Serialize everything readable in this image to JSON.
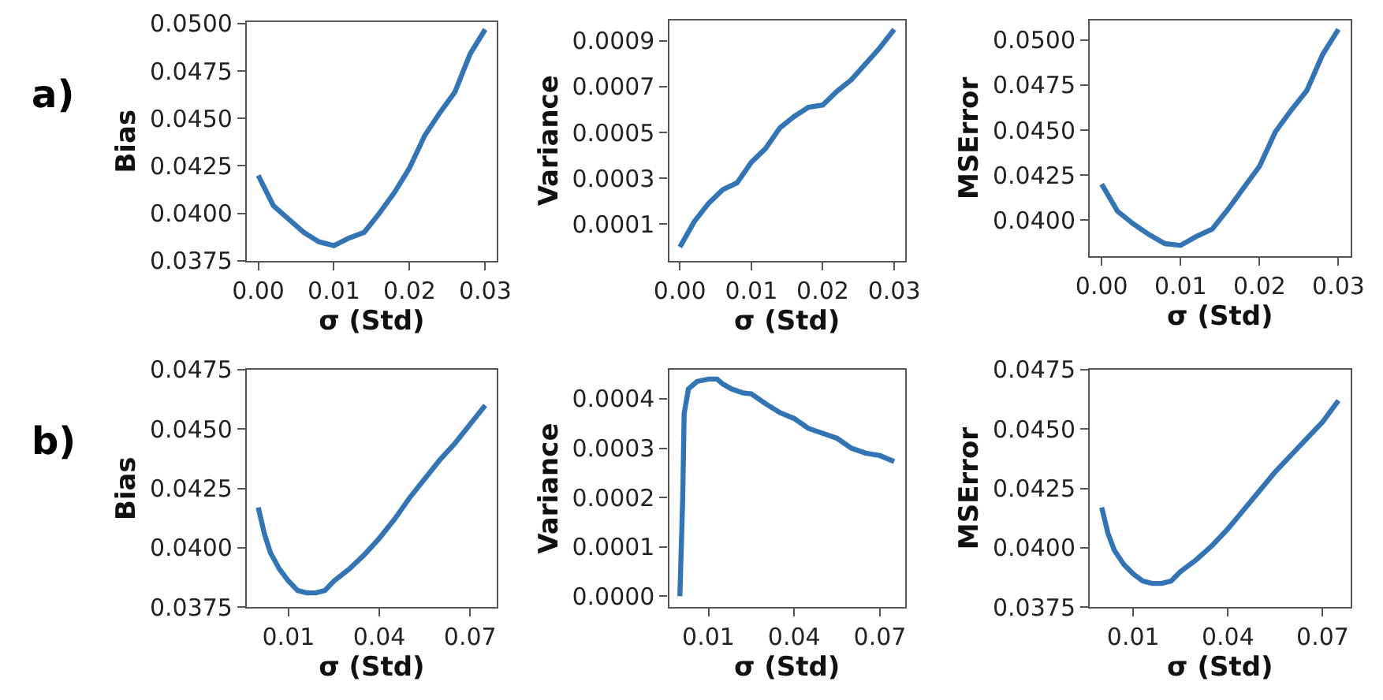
{
  "chart_data": [
    {
      "type": "line",
      "xlabel": "σ (Std)",
      "ylabel": "Bias",
      "annotations": [
        "a)"
      ],
      "marker": "none",
      "line_style": "solid",
      "x": [
        0,
        0.002,
        0.004,
        0.006,
        0.008,
        0.01,
        0.012,
        0.014,
        0.016,
        0.018,
        0.02,
        0.022,
        0.024,
        0.026,
        0.028,
        0.03
      ],
      "series": [
        {
          "color": "#3274b4",
          "values": [
            0.042,
            0.0404,
            0.0397,
            0.039,
            0.0385,
            0.0383,
            0.0387,
            0.039,
            0.04,
            0.0411,
            0.0424,
            0.0441,
            0.0453,
            0.0464,
            0.0484,
            0.0497
          ]
        }
      ],
      "xlim": [
        -0.0015,
        0.0315
      ],
      "ylim": [
        0.0375,
        0.0501
      ],
      "xticks": [
        {
          "value": 0,
          "label": "0.00"
        },
        {
          "value": 0.01,
          "label": "0.01"
        },
        {
          "value": 0.02,
          "label": "0.02"
        },
        {
          "value": 0.03,
          "label": "0.03"
        }
      ],
      "yticks": [
        {
          "value": 0.0375,
          "label": "0.0375"
        },
        {
          "value": 0.04,
          "label": "0.0400"
        },
        {
          "value": 0.0425,
          "label": "0.0425"
        },
        {
          "value": 0.045,
          "label": "0.0450"
        },
        {
          "value": 0.0475,
          "label": "0.0475"
        },
        {
          "value": 0.05,
          "label": "0.0500"
        }
      ]
    },
    {
      "type": "line",
      "xlabel": "σ (Std)",
      "ylabel": "Variance",
      "marker": "none",
      "line_style": "solid",
      "x": [
        0,
        0.002,
        0.004,
        0.006,
        0.008,
        0.01,
        0.012,
        0.014,
        0.016,
        0.018,
        0.02,
        0.022,
        0.024,
        0.026,
        0.028,
        0.03
      ],
      "series": [
        {
          "color": "#3274b4",
          "values": [
            0.0,
            0.00011,
            0.00019,
            0.00025,
            0.00028,
            0.00037,
            0.00043,
            0.00052,
            0.00057,
            0.00061,
            0.00062,
            0.00068,
            0.00073,
            0.0008,
            0.00087,
            0.00095
          ]
        }
      ],
      "xlim": [
        -0.0015,
        0.0315
      ],
      "ylim": [
        -6e-05,
        0.00099
      ],
      "xticks": [
        {
          "value": 0,
          "label": "0.00"
        },
        {
          "value": 0.01,
          "label": "0.01"
        },
        {
          "value": 0.02,
          "label": "0.02"
        },
        {
          "value": 0.03,
          "label": "0.03"
        }
      ],
      "yticks": [
        {
          "value": 0.0001,
          "label": "0.0001"
        },
        {
          "value": 0.0003,
          "label": "0.0003"
        },
        {
          "value": 0.0005,
          "label": "0.0005"
        },
        {
          "value": 0.0007,
          "label": "0.0007"
        },
        {
          "value": 0.0009,
          "label": "0.0009"
        }
      ]
    },
    {
      "type": "line",
      "xlabel": "σ (Std)",
      "ylabel": "MSError",
      "marker": "none",
      "line_style": "solid",
      "x": [
        0,
        0.002,
        0.004,
        0.006,
        0.008,
        0.01,
        0.012,
        0.014,
        0.016,
        0.018,
        0.02,
        0.022,
        0.024,
        0.026,
        0.028,
        0.03
      ],
      "series": [
        {
          "color": "#3274b4",
          "values": [
            0.042,
            0.0405,
            0.0398,
            0.0392,
            0.0387,
            0.0386,
            0.0391,
            0.0395,
            0.0406,
            0.0418,
            0.043,
            0.0449,
            0.0461,
            0.0472,
            0.0492,
            0.0506
          ]
        }
      ],
      "xlim": [
        -0.0015,
        0.0315
      ],
      "ylim": [
        0.038,
        0.0511
      ],
      "xticks": [
        {
          "value": 0,
          "label": "0.00"
        },
        {
          "value": 0.01,
          "label": "0.01"
        },
        {
          "value": 0.02,
          "label": "0.02"
        },
        {
          "value": 0.03,
          "label": "0.03"
        }
      ],
      "yticks": [
        {
          "value": 0.04,
          "label": "0.0400"
        },
        {
          "value": 0.0425,
          "label": "0.0425"
        },
        {
          "value": 0.045,
          "label": "0.0450"
        },
        {
          "value": 0.0475,
          "label": "0.0475"
        },
        {
          "value": 0.05,
          "label": "0.0500"
        }
      ]
    },
    {
      "type": "line",
      "xlabel": "σ (Std)",
      "ylabel": "Bias",
      "annotations": [
        "b)"
      ],
      "marker": "none",
      "line_style": "solid",
      "x": [
        0,
        0.002,
        0.004,
        0.007,
        0.01,
        0.013,
        0.016,
        0.019,
        0.022,
        0.025,
        0.03,
        0.035,
        0.04,
        0.045,
        0.05,
        0.055,
        0.06,
        0.065,
        0.07,
        0.075
      ],
      "series": [
        {
          "color": "#3274b4",
          "values": [
            0.0417,
            0.0406,
            0.0398,
            0.0391,
            0.0386,
            0.0382,
            0.0381,
            0.0381,
            0.0382,
            0.0386,
            0.0391,
            0.0397,
            0.0404,
            0.0412,
            0.0421,
            0.0429,
            0.0437,
            0.0444,
            0.0452,
            0.046
          ]
        }
      ],
      "xlim": [
        -0.00375,
        0.07875
      ],
      "ylim": [
        0.0375,
        0.0475
      ],
      "xticks": [
        0.01,
        0.04,
        0.07
      ],
      "yticks": [
        {
          "value": 0.0375,
          "label": "0.0375"
        },
        {
          "value": 0.04,
          "label": "0.0400"
        },
        {
          "value": 0.0425,
          "label": "0.0425"
        },
        {
          "value": 0.045,
          "label": "0.0450"
        },
        {
          "value": 0.0475,
          "label": "0.0475"
        }
      ]
    },
    {
      "type": "line",
      "xlabel": "σ (Std)",
      "ylabel": "Variance",
      "marker": "none",
      "line_style": "solid",
      "x": [
        0,
        0.001,
        0.0015,
        0.003,
        0.006,
        0.01,
        0.013,
        0.015,
        0.018,
        0.022,
        0.025,
        0.03,
        0.035,
        0.04,
        0.045,
        0.05,
        0.055,
        0.06,
        0.065,
        0.07,
        0.075
      ],
      "series": [
        {
          "color": "#3274b4",
          "values": [
            0.0,
            0.0002,
            0.00037,
            0.00042,
            0.000435,
            0.00044,
            0.00044,
            0.00043,
            0.00042,
            0.000412,
            0.00041,
            0.00039,
            0.000372,
            0.00036,
            0.00034,
            0.00033,
            0.00032,
            0.0003,
            0.00029,
            0.000285,
            0.000273
          ]
        }
      ],
      "xlim": [
        -0.00375,
        0.07875
      ],
      "ylim": [
        -2.2e-05,
        0.000459
      ],
      "xticks": [
        0.01,
        0.04,
        0.07
      ],
      "yticks": [
        {
          "value": 0,
          "label": "0.0000"
        },
        {
          "value": 0.0001,
          "label": "0.0001"
        },
        {
          "value": 0.0002,
          "label": "0.0002"
        },
        {
          "value": 0.0003,
          "label": "0.0003"
        },
        {
          "value": 0.0004,
          "label": "0.0004"
        }
      ]
    },
    {
      "type": "line",
      "xlabel": "σ (Std)",
      "ylabel": "MSError",
      "marker": "none",
      "line_style": "solid",
      "x": [
        0,
        0.002,
        0.004,
        0.007,
        0.01,
        0.013,
        0.016,
        0.019,
        0.022,
        0.025,
        0.03,
        0.035,
        0.04,
        0.045,
        0.05,
        0.055,
        0.06,
        0.065,
        0.07,
        0.075
      ],
      "series": [
        {
          "color": "#3274b4",
          "values": [
            0.0417,
            0.0406,
            0.0399,
            0.0393,
            0.0389,
            0.0386,
            0.0385,
            0.0385,
            0.0386,
            0.039,
            0.0395,
            0.0401,
            0.0408,
            0.0416,
            0.0424,
            0.0432,
            0.0439,
            0.0446,
            0.0453,
            0.0462
          ]
        }
      ],
      "xlim": [
        -0.00375,
        0.07875
      ],
      "ylim": [
        0.0375,
        0.0475
      ],
      "xticks": [
        0.01,
        0.04,
        0.07
      ],
      "yticks": [
        {
          "value": 0.0375,
          "label": "0.0375"
        },
        {
          "value": 0.04,
          "label": "0.0400"
        },
        {
          "value": 0.0425,
          "label": "0.0425"
        },
        {
          "value": 0.045,
          "label": "0.0450"
        },
        {
          "value": 0.0475,
          "label": "0.0475"
        }
      ]
    }
  ]
}
